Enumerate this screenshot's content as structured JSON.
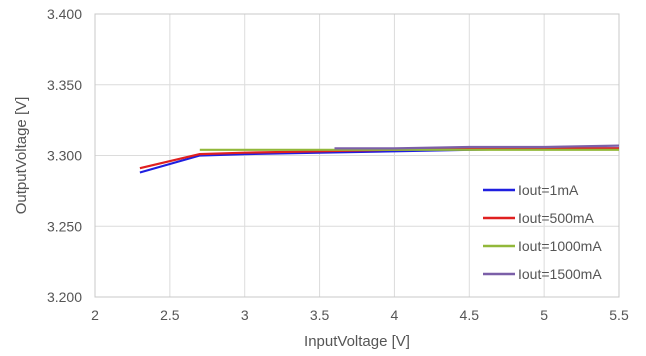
{
  "chart_data": {
    "type": "line",
    "xlabel": "InputVoltage [V]",
    "ylabel": "OutputVoltage [V]",
    "xlim": [
      2,
      5.5
    ],
    "ylim": [
      3.2,
      3.4
    ],
    "x_ticks": [
      "2",
      "2.5",
      "3",
      "3.5",
      "4",
      "4.5",
      "5",
      "5.5"
    ],
    "y_ticks": [
      "3.200",
      "3.250",
      "3.300",
      "3.350",
      "3.400"
    ],
    "grid": true,
    "legend_position": "bottom-right",
    "series": [
      {
        "name": "Iout=1mA",
        "color": "#1f1fe0",
        "points": [
          [
            2.3,
            3.288
          ],
          [
            2.7,
            3.3
          ],
          [
            3.0,
            3.301
          ],
          [
            3.5,
            3.302
          ],
          [
            4.0,
            3.303
          ],
          [
            4.5,
            3.304
          ],
          [
            5.0,
            3.305
          ],
          [
            5.5,
            3.305
          ]
        ]
      },
      {
        "name": "Iout=500mA",
        "color": "#e02020",
        "points": [
          [
            2.3,
            3.291
          ],
          [
            2.7,
            3.301
          ],
          [
            3.0,
            3.302
          ],
          [
            3.5,
            3.303
          ],
          [
            4.0,
            3.304
          ],
          [
            4.5,
            3.305
          ],
          [
            5.0,
            3.305
          ],
          [
            5.5,
            3.305
          ]
        ]
      },
      {
        "name": "Iout=1000mA",
        "color": "#92b83a",
        "points": [
          [
            2.7,
            3.304
          ],
          [
            3.0,
            3.304
          ],
          [
            3.5,
            3.304
          ],
          [
            4.0,
            3.304
          ],
          [
            4.5,
            3.304
          ],
          [
            5.0,
            3.304
          ],
          [
            5.5,
            3.304
          ]
        ]
      },
      {
        "name": "Iout=1500mA",
        "color": "#7b5fa8",
        "points": [
          [
            3.6,
            3.305
          ],
          [
            4.0,
            3.305
          ],
          [
            4.5,
            3.306
          ],
          [
            5.0,
            3.306
          ],
          [
            5.5,
            3.307
          ]
        ]
      }
    ]
  }
}
